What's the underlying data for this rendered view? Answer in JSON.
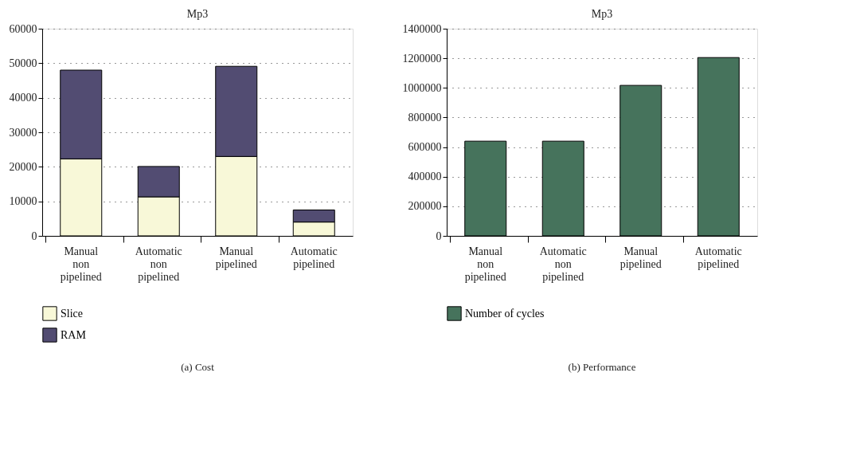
{
  "chart_data": [
    {
      "type": "bar",
      "title": "Mp3",
      "categories": [
        "Manual non pipelined",
        "Automatic non pipelined",
        "Manual pipelined",
        "Automatic pipelined"
      ],
      "stacked": true,
      "series": [
        {
          "name": "Slice",
          "color": "#f8f8d8",
          "values": [
            22300,
            11300,
            23000,
            4000
          ]
        },
        {
          "name": "RAM",
          "color": "#524c72",
          "values": [
            25700,
            8800,
            26100,
            3500
          ]
        }
      ],
      "ylim": [
        0,
        60000
      ],
      "yticks": [
        0,
        10000,
        20000,
        30000,
        40000,
        50000,
        60000
      ],
      "grid": "y",
      "legend": "bottom",
      "annotations": [
        "(a)  Cost"
      ]
    },
    {
      "type": "bar",
      "title": "Mp3",
      "categories": [
        "Manual non pipelined",
        "Automatic non pipelined",
        "Manual pipelined",
        "Automatic pipelined"
      ],
      "series": [
        {
          "name": "Number of cycles",
          "color": "#46735c",
          "values": [
            640000,
            640000,
            1017000,
            1205000
          ]
        }
      ],
      "ylim": [
        0,
        1400000
      ],
      "yticks": [
        0,
        200000,
        400000,
        600000,
        800000,
        1000000,
        1200000,
        1400000
      ],
      "grid": "y",
      "legend": "bottom",
      "annotations": [
        "(b)  Performance"
      ]
    }
  ]
}
